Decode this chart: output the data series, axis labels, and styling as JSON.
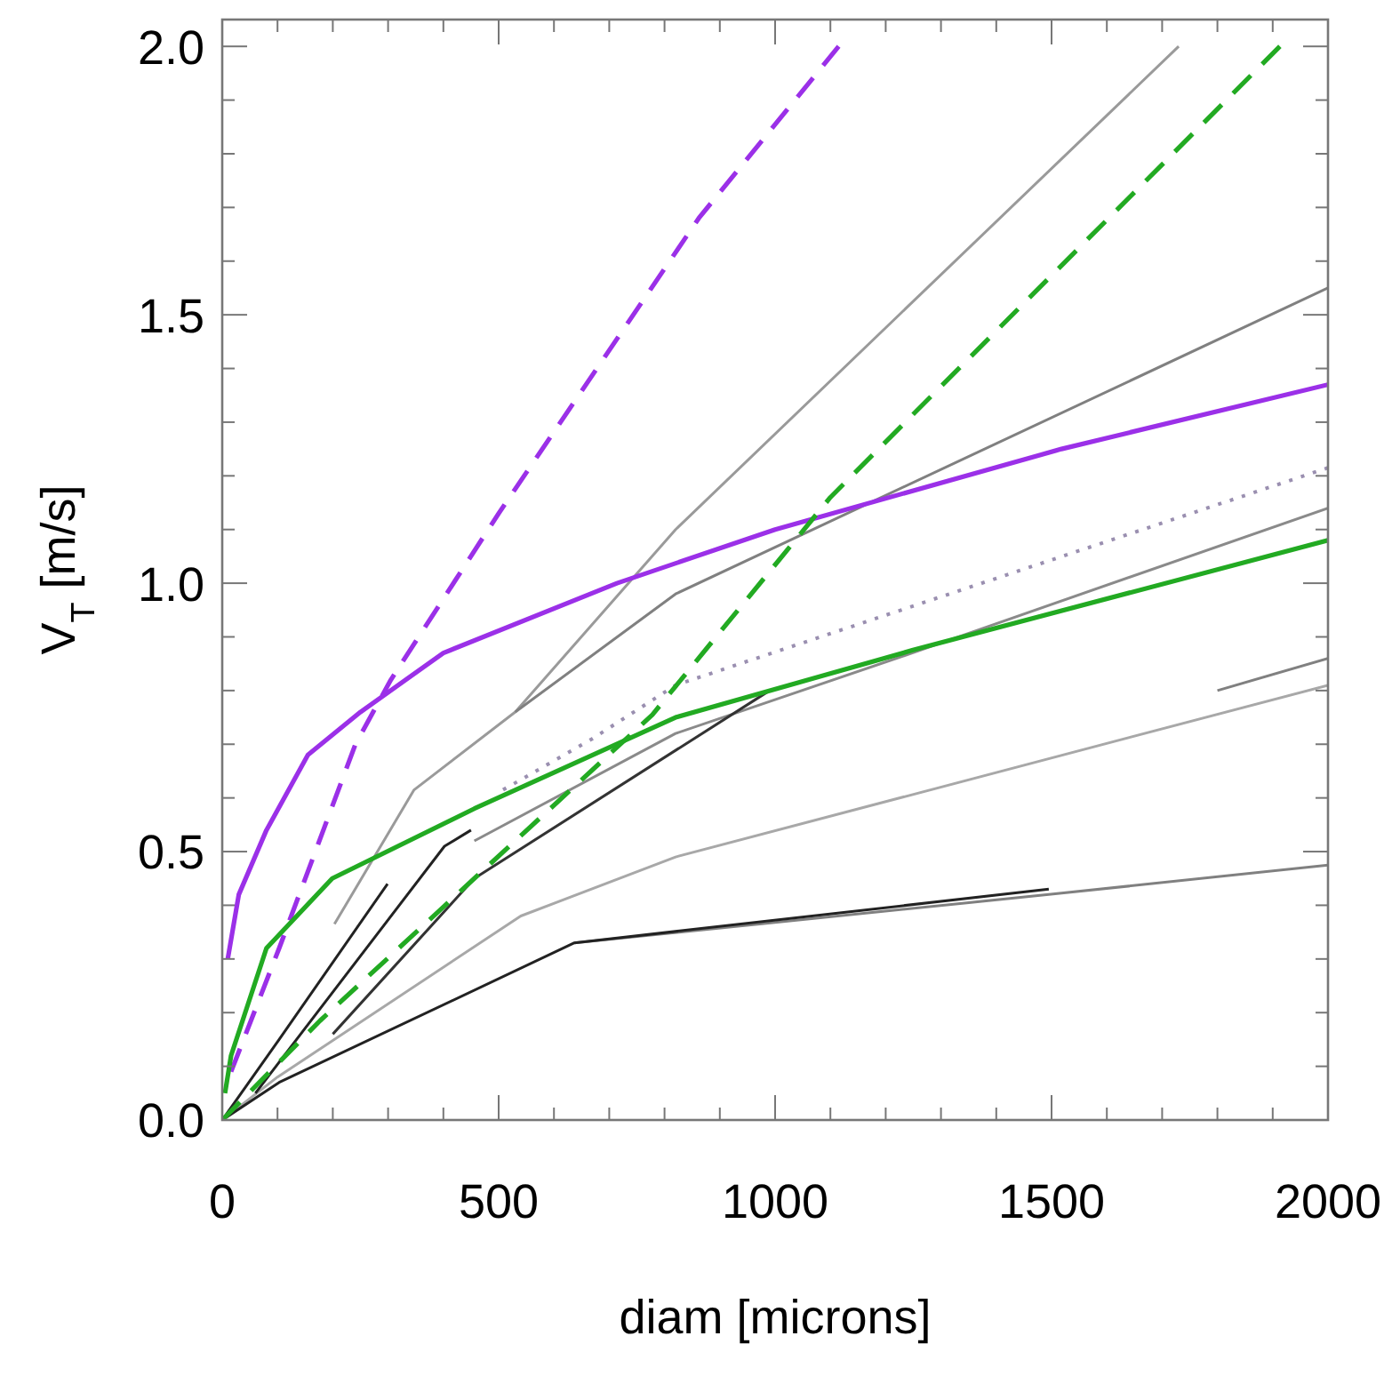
{
  "chart_data": {
    "type": "line",
    "xlabel": "diam [microns]",
    "ylabel": "V$_{T}$ [m/s]",
    "xlim": [
      0,
      2000
    ],
    "ylim": [
      0,
      2.05
    ],
    "xticks": [
      0,
      {
        "value": 100,
        "label": null
      },
      {
        "value": 200,
        "label": null
      },
      {
        "value": 300,
        "label": null
      },
      {
        "value": 400,
        "label": null
      },
      500,
      {
        "value": 600,
        "label": null
      },
      {
        "value": 700,
        "label": null
      },
      {
        "value": 800,
        "label": null
      },
      {
        "value": 900,
        "label": null
      },
      1000,
      {
        "value": 1100,
        "label": null
      },
      {
        "value": 1200,
        "label": null
      },
      {
        "value": 1300,
        "label": null
      },
      {
        "value": 1400,
        "label": null
      },
      1500,
      {
        "value": 1600,
        "label": null
      },
      {
        "value": 1700,
        "label": null
      },
      {
        "value": 1800,
        "label": null
      },
      {
        "value": 1900,
        "label": null
      },
      2000
    ],
    "yticks": [
      {
        "value": 0,
        "label": "0.0"
      },
      {
        "value": 0.1,
        "label": null
      },
      {
        "value": 0.2,
        "label": null
      },
      {
        "value": 0.3,
        "label": null
      },
      {
        "value": 0.4,
        "label": null
      },
      0.5,
      {
        "value": 0.6,
        "label": null
      },
      {
        "value": 0.7,
        "label": null
      },
      {
        "value": 0.8,
        "label": null
      },
      {
        "value": 0.9,
        "label": null
      },
      {
        "value": 1,
        "label": "1.0"
      },
      {
        "value": 1.1,
        "label": null
      },
      {
        "value": 1.2,
        "label": null
      },
      {
        "value": 1.3,
        "label": null
      },
      {
        "value": 1.4,
        "label": null
      },
      1.5,
      {
        "value": 1.6,
        "label": null
      },
      {
        "value": 1.7,
        "label": null
      },
      {
        "value": 1.8,
        "label": null
      },
      {
        "value": 1.9,
        "label": null
      },
      {
        "value": 2,
        "label": "2.0"
      }
    ],
    "grid": false,
    "series": [
      {
        "color": "#9a9a9a",
        "line_style": "solid",
        "x": [
          203,
          347,
          530,
          820,
          1730
        ],
        "values": [
          0.365,
          0.615,
          0.76,
          1.1,
          2.0
        ]
      },
      {
        "color": "#808080",
        "line_style": "solid",
        "x": [
          530,
          820,
          2000
        ],
        "values": [
          0.76,
          0.98,
          1.55
        ]
      },
      {
        "color": "#8a8a8a",
        "line_style": "solid",
        "x": [
          456,
          820,
          1248,
          2000
        ],
        "values": [
          0.52,
          0.72,
          0.87,
          1.14
        ]
      },
      {
        "color": "#a8a8a8",
        "line_style": "solid",
        "x": [
          0,
          100,
          540,
          820,
          2000
        ],
        "values": [
          0,
          0.08,
          0.38,
          0.49,
          0.81
        ]
      },
      {
        "color": "#808080",
        "line_style": "solid",
        "x": [
          1800,
          2000
        ],
        "values": [
          0.8,
          0.86
        ]
      },
      {
        "color": "#808080",
        "line_style": "solid",
        "x": [
          637,
          1495,
          2000
        ],
        "values": [
          0.33,
          0.42,
          0.475
        ]
      },
      {
        "color": "#222222",
        "line_style": "solid",
        "x": [
          0,
          103,
          299
        ],
        "values": [
          0,
          0.15,
          0.44
        ]
      },
      {
        "color": "#222222",
        "line_style": "solid",
        "x": [
          60,
          402,
          450
        ],
        "values": [
          0.05,
          0.51,
          0.54
        ]
      },
      {
        "color": "#333333",
        "line_style": "solid",
        "x": [
          200,
          456,
          990
        ],
        "values": [
          0.16,
          0.45,
          0.8
        ]
      },
      {
        "color": "#222222",
        "line_style": "solid",
        "x": [
          0,
          103,
          637,
          1495
        ],
        "values": [
          0,
          0.07,
          0.33,
          0.43
        ]
      },
      {
        "color": "#9a8fb0",
        "line_style": "dotted",
        "x": [
          508,
          669,
          820,
          2000
        ],
        "values": [
          0.615,
          0.71,
          0.81,
          1.215
        ]
      },
      {
        "color": "#9b30e8",
        "line_style": "solid",
        "x": [
          10,
          30,
          80,
          155,
          250,
          400,
          714,
          1000,
          1518,
          2000
        ],
        "values": [
          0.3,
          0.42,
          0.54,
          0.68,
          0.76,
          0.87,
          1.0,
          1.1,
          1.25,
          1.37
        ]
      },
      {
        "color": "#9b30e8",
        "line_style": "dashed",
        "x": [
          16,
          103,
          241,
          305,
          500,
          862,
          1115
        ],
        "values": [
          0.09,
          0.32,
          0.7,
          0.82,
          1.13,
          1.68,
          2.0
        ]
      },
      {
        "color": "#22aa22",
        "line_style": "solid",
        "x": [
          5,
          16,
          80,
          199,
          456,
          820,
          1248,
          2000
        ],
        "values": [
          0.05,
          0.12,
          0.32,
          0.45,
          0.58,
          0.75,
          0.875,
          1.08
        ]
      },
      {
        "color": "#22aa22",
        "line_style": "dashed",
        "x": [
          0,
          177,
          456,
          778,
          1100,
          1913
        ],
        "values": [
          0,
          0.185,
          0.45,
          0.755,
          1.16,
          2.0
        ]
      }
    ]
  }
}
